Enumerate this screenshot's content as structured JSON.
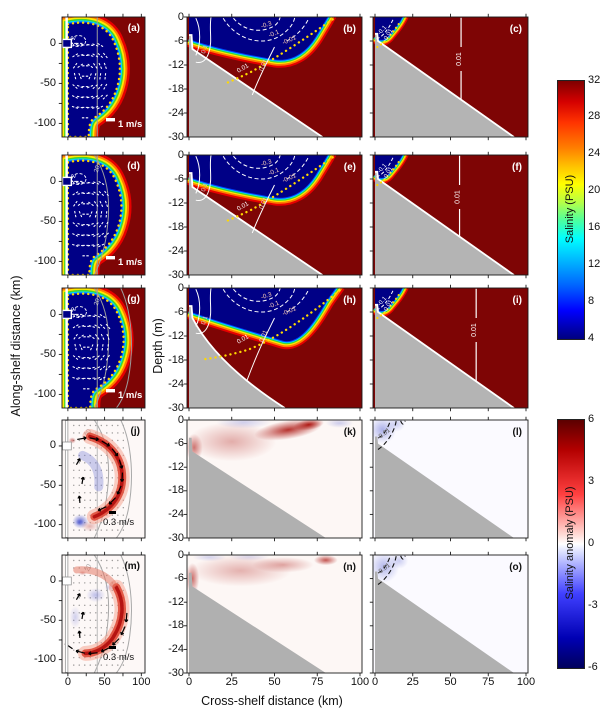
{
  "figure": {
    "x_label": "Cross-shelf distance (km)",
    "y_label_left": "Along-shelf distance (km)",
    "y_label_mid": "Depth (m)",
    "plan_x_ticks": [
      "0",
      "50",
      "100"
    ],
    "plan_x_tick_values": [
      0,
      50,
      100
    ],
    "cross_x_ticks": [
      "0",
      "25",
      "50",
      "75",
      "100"
    ],
    "cross_x_tick_values": [
      0,
      25,
      50,
      75,
      100
    ],
    "plan_y_ticks": [
      "0",
      "-50",
      "-100"
    ],
    "plan_y_tick_values": [
      0,
      -50,
      -100
    ],
    "depth_ticks": [
      "0",
      "-6",
      "-12",
      "-18",
      "-24",
      "-30"
    ]
  },
  "colorbars": [
    {
      "title": "Salinity (PSU)",
      "ticks": [
        "32",
        "28",
        "24",
        "20",
        "16",
        "12",
        "8",
        "4"
      ],
      "range": [
        4,
        32
      ],
      "colormap": "jet"
    },
    {
      "title": "Salinity anomaly (PSU)",
      "ticks": [
        "6",
        "3",
        "0",
        "-3",
        "-6"
      ],
      "range": [
        -6,
        6
      ],
      "colormap": "blue-white-red"
    }
  ],
  "panels": {
    "a": {
      "letter": "(a)",
      "scale_label": "1 m/s",
      "contour_labels": [
        "2"
      ]
    },
    "b": {
      "letter": "(b)",
      "contour_labels": [
        "0.1",
        "-0.1",
        "-0.3",
        "-0.01",
        "0.01"
      ]
    },
    "c": {
      "letter": "(c)",
      "contour_labels": [
        "-0.1",
        "-0.01",
        "0.01"
      ]
    },
    "d": {
      "letter": "(d)",
      "scale_label": "1 m/s",
      "contour_labels": [
        "2",
        "20"
      ]
    },
    "e": {
      "letter": "(e)",
      "contour_labels": [
        "0.1",
        "-0.1",
        "-0.3",
        "-0.01",
        "0.01"
      ]
    },
    "f": {
      "letter": "(f)",
      "contour_labels": [
        "-0.1",
        "-0.01",
        "0.01"
      ]
    },
    "g": {
      "letter": "(g)",
      "scale_label": "1 m/s",
      "contour_labels": [
        "2",
        "20"
      ]
    },
    "h": {
      "letter": "(h)",
      "contour_labels": [
        "0.1",
        "-0.1",
        "-0.3",
        "-0.01",
        "0.01"
      ]
    },
    "i": {
      "letter": "(i)",
      "contour_labels": [
        "-0.1",
        "-0.01",
        "0.01"
      ]
    },
    "j": {
      "letter": "(j)",
      "scale_label": "0.3 m/s",
      "contour_labels": [
        "20"
      ]
    },
    "k": {
      "letter": "(k)",
      "contour_labels": []
    },
    "l": {
      "letter": "(l)",
      "contour_labels": [
        "-0.01"
      ]
    },
    "m": {
      "letter": "(m)",
      "scale_label": "0.3 m/s",
      "contour_labels": [
        "20"
      ]
    },
    "n": {
      "letter": "(n)",
      "contour_labels": []
    },
    "o": {
      "letter": "(o)",
      "contour_labels": [
        "-0.01"
      ]
    }
  },
  "chart_data": [
    {
      "id": "a",
      "panel_label": "(a)",
      "type": "heatmap",
      "view": "plan",
      "variable": "surface salinity",
      "colormap": "jet",
      "clim": [
        4,
        32
      ],
      "x": {
        "range": [
          -8,
          105
        ],
        "ticks": [
          0,
          50,
          100
        ]
      },
      "y": {
        "label": "Along-shelf distance (km)",
        "range": [
          -117,
          33
        ],
        "ticks": [
          0,
          -50,
          -100
        ]
      },
      "overlays": [
        "white dashed velocity vectors, scale 1 m/s",
        "yellow dotted plume boundary",
        "white dashed salinity contour labeled 2",
        "gray cross-shelf transect line"
      ],
      "features": [
        "low-salinity (blue) plume bulge attached to coast with downcoast tail",
        "high salinity (dark red) offshore"
      ]
    },
    {
      "id": "b",
      "panel_label": "(b)",
      "type": "heatmap",
      "view": "cross-section",
      "variable": "salinity",
      "colormap": "jet",
      "clim": [
        4,
        32
      ],
      "x": {
        "range": [
          0,
          100
        ],
        "ticks": [
          0,
          25,
          50,
          75,
          100
        ]
      },
      "y": {
        "label": "Depth (m)",
        "range": [
          -30,
          0
        ],
        "ticks": [
          0,
          -6,
          -12,
          -18,
          -24,
          -30
        ]
      },
      "contours": {
        "white_solid": [
          "0.1",
          "0.01"
        ],
        "white_dashed": [
          "-0.1",
          "-0.3",
          "-0.01"
        ],
        "yellow_dotted": "plume boundary"
      },
      "bathymetry": "gray wedge sloping from ~-8 m at coast to -30 m near x=78 km"
    },
    {
      "id": "c",
      "panel_label": "(c)",
      "type": "heatmap",
      "view": "cross-section",
      "variable": "salinity",
      "colormap": "jet",
      "clim": [
        4,
        32
      ],
      "x": {
        "range": [
          0,
          100
        ],
        "ticks": [
          0,
          25,
          50,
          75,
          100
        ]
      },
      "y": {
        "range": [
          -30,
          0
        ],
        "ticks": [
          0,
          -6,
          -12,
          -18,
          -24,
          -30
        ]
      },
      "contours": {
        "white_solid": [
          "0.01"
        ],
        "white_dashed": [
          "-0.1",
          "-0.01"
        ],
        "yellow_dotted": "plume boundary"
      },
      "bathymetry": "gray wedge sloping to -30 m near x=92 km",
      "features": [
        "thin fresh wedge confined near coast",
        "vertical 0.01 contour near x=57 km"
      ]
    },
    {
      "id": "d",
      "panel_label": "(d)",
      "type": "heatmap",
      "view": "plan",
      "variable": "surface salinity",
      "colormap": "jet",
      "clim": [
        4,
        32
      ],
      "x": {
        "range": [
          -8,
          105
        ],
        "ticks": [
          0,
          50,
          100
        ]
      },
      "y": {
        "range": [
          -117,
          33
        ],
        "ticks": [
          0,
          -50,
          -100
        ]
      },
      "overlays": [
        "white dashed velocity vectors, scale 1 m/s",
        "yellow dotted plume boundary",
        "contour labeled 2",
        "gray isobath labeled 20",
        "gray transect line"
      ]
    },
    {
      "id": "e",
      "panel_label": "(e)",
      "type": "heatmap",
      "view": "cross-section",
      "variable": "salinity",
      "colormap": "jet",
      "clim": [
        4,
        32
      ],
      "x": {
        "range": [
          0,
          100
        ],
        "ticks": [
          0,
          25,
          50,
          75,
          100
        ]
      },
      "y": {
        "range": [
          -30,
          0
        ],
        "ticks": [
          0,
          -6,
          -12,
          -18,
          -24,
          -30
        ]
      },
      "contours": {
        "white_solid": [
          "0.1",
          "0.01"
        ],
        "white_dashed": [
          "-0.1",
          "-0.3",
          "-0.01"
        ],
        "yellow_dotted": "plume boundary"
      },
      "bathymetry": "gray wedge to -30 m near x=78 km"
    },
    {
      "id": "f",
      "panel_label": "(f)",
      "type": "heatmap",
      "view": "cross-section",
      "variable": "salinity",
      "colormap": "jet",
      "clim": [
        4,
        32
      ],
      "x": {
        "range": [
          0,
          100
        ],
        "ticks": [
          0,
          25,
          50,
          75,
          100
        ]
      },
      "y": {
        "range": [
          -30,
          0
        ],
        "ticks": [
          0,
          -6,
          -12,
          -18,
          -24,
          -30
        ]
      },
      "contours": {
        "white_solid": [
          "0.01"
        ],
        "white_dashed": [
          "-0.1",
          "-0.01"
        ],
        "yellow_dotted": "plume boundary"
      },
      "bathymetry": "gray wedge to -30 m near x=90 km"
    },
    {
      "id": "g",
      "panel_label": "(g)",
      "type": "heatmap",
      "view": "plan",
      "variable": "surface salinity",
      "colormap": "jet",
      "clim": [
        4,
        32
      ],
      "x": {
        "range": [
          -8,
          105
        ],
        "ticks": [
          0,
          50,
          100
        ]
      },
      "y": {
        "range": [
          -117,
          33
        ],
        "ticks": [
          0,
          -50,
          -100
        ]
      },
      "overlays": [
        "white dashed velocity vectors, scale 1 m/s",
        "yellow dotted plume boundary",
        "contour labeled 2",
        "two gray isobaths, label 20",
        "gray transect line"
      ]
    },
    {
      "id": "h",
      "panel_label": "(h)",
      "type": "heatmap",
      "view": "cross-section",
      "variable": "salinity",
      "colormap": "jet",
      "clim": [
        4,
        32
      ],
      "x": {
        "range": [
          0,
          100
        ],
        "ticks": [
          0,
          25,
          50,
          75,
          100
        ]
      },
      "y": {
        "range": [
          -30,
          0
        ],
        "ticks": [
          0,
          -6,
          -12,
          -18,
          -24,
          -30
        ]
      },
      "contours": {
        "white_solid": [
          "0.1",
          "0.01"
        ],
        "white_dashed": [
          "-0.1",
          "-0.3",
          "-0.01"
        ],
        "yellow_dotted": "plume boundary"
      },
      "bathymetry": "curved gray shelf reaching -30 m near x=56 km"
    },
    {
      "id": "i",
      "panel_label": "(i)",
      "type": "heatmap",
      "view": "cross-section",
      "variable": "salinity",
      "colormap": "jet",
      "clim": [
        4,
        32
      ],
      "x": {
        "range": [
          0,
          100
        ],
        "ticks": [
          0,
          25,
          50,
          75,
          100
        ]
      },
      "y": {
        "range": [
          -30,
          0
        ],
        "ticks": [
          0,
          -6,
          -12,
          -18,
          -24,
          -30
        ]
      },
      "contours": {
        "white_solid": [
          "0.01"
        ],
        "white_dashed": [
          "-0.1",
          "-0.01"
        ],
        "yellow_dotted": "plume boundary"
      },
      "bathymetry": "gray wedge to -30 m near x=90 km",
      "features": [
        "vertical 0.01 contour near x=67 km"
      ]
    },
    {
      "id": "j",
      "panel_label": "(j)",
      "type": "heatmap",
      "view": "plan",
      "variable": "surface salinity anomaly",
      "colormap": "blue-white-red",
      "clim": [
        -6,
        6
      ],
      "x": {
        "range": [
          -8,
          105
        ],
        "ticks": [
          0,
          50,
          100
        ]
      },
      "y": {
        "range": [
          -117,
          33
        ],
        "ticks": [
          0,
          -50,
          -100
        ]
      },
      "overlays": [
        "black velocity-anomaly vectors, scale 0.3 m/s",
        "gray isobaths, label 20",
        "gray transect line"
      ],
      "features": [
        "red crescent-shaped positive anomaly around plume bulge edge",
        "strong blue negative anomaly patch near coast at y is approximately -95 km"
      ]
    },
    {
      "id": "k",
      "panel_label": "(k)",
      "type": "heatmap",
      "view": "cross-section",
      "variable": "salinity anomaly",
      "colormap": "blue-white-red",
      "clim": [
        -6,
        6
      ],
      "x": {
        "range": [
          0,
          100
        ],
        "ticks": [
          0,
          25,
          50,
          75,
          100
        ]
      },
      "y": {
        "range": [
          -30,
          0
        ],
        "ticks": [
          0,
          -6,
          -12,
          -18,
          -24,
          -30
        ]
      },
      "features": [
        "diffuse positive (red) anomaly in upper 10 m",
        "intense red streak near surface around x=55-80 km"
      ],
      "bathymetry": "gray wedge to -30 m near x=80 km"
    },
    {
      "id": "l",
      "panel_label": "(l)",
      "type": "heatmap",
      "view": "cross-section",
      "variable": "salinity anomaly",
      "colormap": "blue-white-red",
      "clim": [
        -6,
        6
      ],
      "x": {
        "range": [
          0,
          100
        ],
        "ticks": [
          0,
          25,
          50,
          75,
          100
        ]
      },
      "y": {
        "range": [
          -30,
          0
        ],
        "ticks": [
          0,
          -6,
          -12,
          -18,
          -24,
          -30
        ]
      },
      "contours": {
        "black_dashed": [
          "-0.01"
        ]
      },
      "features": [
        "weak negative (pale blue) anomaly near coast"
      ],
      "bathymetry": "gray wedge to -30 m near x=92 km"
    },
    {
      "id": "m",
      "panel_label": "(m)",
      "type": "heatmap",
      "view": "plan",
      "variable": "surface salinity anomaly",
      "colormap": "blue-white-red",
      "clim": [
        -6,
        6
      ],
      "x": {
        "range": [
          -8,
          105
        ],
        "ticks": [
          0,
          50,
          100
        ]
      },
      "y": {
        "range": [
          -117,
          33
        ],
        "ticks": [
          0,
          -50,
          -100
        ]
      },
      "overlays": [
        "black velocity-anomaly vectors, scale 0.3 m/s",
        "gray isobaths, label 20",
        "gray transect line"
      ],
      "features": [
        "red arc of positive anomaly along lower plume edge",
        "patchy blue negative anomaly inside bulge"
      ]
    },
    {
      "id": "n",
      "panel_label": "(n)",
      "type": "heatmap",
      "view": "cross-section",
      "variable": "salinity anomaly",
      "colormap": "blue-white-red",
      "clim": [
        -6,
        6
      ],
      "x": {
        "label": "Cross-shelf distance (km)",
        "range": [
          0,
          100
        ],
        "ticks": [
          0,
          25,
          50,
          75,
          100
        ]
      },
      "y": {
        "range": [
          -30,
          0
        ],
        "ticks": [
          0,
          -6,
          -12,
          -18,
          -24,
          -30
        ]
      },
      "features": [
        "diffuse positive (red) anomaly layer in upper 8 m, strongest at coast",
        "small red spot near surface around x=80 km"
      ],
      "bathymetry": "gray wedge to -30 m near x=80 km"
    },
    {
      "id": "o",
      "panel_label": "(o)",
      "type": "heatmap",
      "view": "cross-section",
      "variable": "salinity anomaly",
      "colormap": "blue-white-red",
      "clim": [
        -6,
        6
      ],
      "x": {
        "label": "Cross-shelf distance (km)",
        "range": [
          0,
          100
        ],
        "ticks": [
          0,
          25,
          50,
          75,
          100
        ]
      },
      "y": {
        "range": [
          -30,
          0
        ],
        "ticks": [
          0,
          -6,
          -12,
          -18,
          -24,
          -30
        ]
      },
      "contours": {
        "black_dashed": [
          "-0.01"
        ]
      },
      "features": [
        "weak negative (pale blue) anomaly near coast"
      ],
      "bathymetry": "gray wedge to -30 m near x=92 km"
    }
  ]
}
